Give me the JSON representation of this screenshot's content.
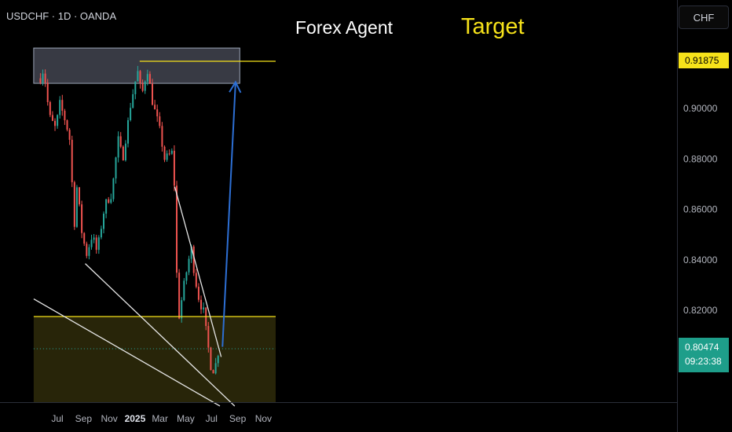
{
  "header": {
    "symbol_line": "USDCHF · 1D · OANDA",
    "currency_button": "CHF"
  },
  "annotations": {
    "forex_agent": "Forex Agent",
    "target": "Target"
  },
  "price_tags": {
    "target_price": "0.91875",
    "last_price": "0.80474",
    "countdown": "09:23:38"
  },
  "colors": {
    "background": "#000000",
    "up_candle": "#26a69a",
    "down_candle": "#ef5350",
    "target_line": "#f6e21a",
    "last_price_tag": "#1e9e8a",
    "projection_arrow": "#2d6fd4",
    "trendlines": "#e6e6e6"
  },
  "chart_data": {
    "type": "candlestick",
    "timeframe": "1D",
    "x_tick_labels": [
      "Jul",
      "Sep",
      "Nov",
      "2025",
      "Mar",
      "May",
      "Jul",
      "Sep",
      "Nov"
    ],
    "y_tick_labels": [
      "0.82000",
      "0.84000",
      "0.86000",
      "0.88000",
      "0.90000"
    ],
    "ylim": [
      0.782,
      0.9413
    ],
    "price_series": [
      {
        "date": "2024-05-20",
        "close": 0.912
      },
      {
        "date": "2024-05-28",
        "close": 0.916
      },
      {
        "date": "2024-06-10",
        "close": 0.897
      },
      {
        "date": "2024-06-25",
        "close": 0.892
      },
      {
        "date": "2024-07-05",
        "close": 0.902
      },
      {
        "date": "2024-07-20",
        "close": 0.894
      },
      {
        "date": "2024-08-01",
        "close": 0.885
      },
      {
        "date": "2024-08-06",
        "close": 0.848
      },
      {
        "date": "2024-08-15",
        "close": 0.87
      },
      {
        "date": "2024-08-25",
        "close": 0.852
      },
      {
        "date": "2024-09-06",
        "close": 0.842
      },
      {
        "date": "2024-09-20",
        "close": 0.85
      },
      {
        "date": "2024-10-01",
        "close": 0.843
      },
      {
        "date": "2024-10-20",
        "close": 0.862
      },
      {
        "date": "2024-11-05",
        "close": 0.866
      },
      {
        "date": "2024-11-20",
        "close": 0.888
      },
      {
        "date": "2024-12-01",
        "close": 0.88
      },
      {
        "date": "2024-12-20",
        "close": 0.902
      },
      {
        "date": "2025-01-05",
        "close": 0.915
      },
      {
        "date": "2025-01-15",
        "close": 0.905
      },
      {
        "date": "2025-01-28",
        "close": 0.916
      },
      {
        "date": "2025-02-10",
        "close": 0.902
      },
      {
        "date": "2025-02-25",
        "close": 0.893
      },
      {
        "date": "2025-03-10",
        "close": 0.88
      },
      {
        "date": "2025-03-31",
        "close": 0.883
      },
      {
        "date": "2025-04-11",
        "close": 0.815
      },
      {
        "date": "2025-04-25",
        "close": 0.83
      },
      {
        "date": "2025-05-12",
        "close": 0.845
      },
      {
        "date": "2025-05-20",
        "close": 0.834
      },
      {
        "date": "2025-06-01",
        "close": 0.823
      },
      {
        "date": "2025-06-10",
        "close": 0.82
      },
      {
        "date": "2025-06-20",
        "close": 0.807
      },
      {
        "date": "2025-06-30",
        "close": 0.795
      },
      {
        "date": "2025-07-10",
        "close": 0.799
      },
      {
        "date": "2025-07-17",
        "close": 0.805
      }
    ],
    "zones": [
      {
        "kind": "supply",
        "from": 0.91,
        "to": 0.924,
        "start": "2024-05-06",
        "end": "2025-09-06"
      },
      {
        "kind": "demand",
        "from": 0.782,
        "to": 0.8175,
        "start": "2024-05-06",
        "end": "2025-11-30"
      }
    ],
    "horizontal_lines": [
      {
        "name": "target",
        "y": 0.91875,
        "start": "2025-01-12",
        "end": "2025-11-30"
      },
      {
        "name": "demand-top",
        "y": 0.8175,
        "start": "2024-05-06",
        "end": "2025-11-30"
      },
      {
        "name": "last-price",
        "y": 0.80474,
        "style": "dotted",
        "start": "2024-05-06",
        "end": "2025-11-30"
      }
    ],
    "trendlines": [
      {
        "name": "wedge-upper",
        "from": {
          "date": "2025-04-05",
          "y": 0.869
        },
        "to": {
          "date": "2025-07-24",
          "y": 0.8015
        }
      },
      {
        "name": "wedge-lower",
        "from": {
          "date": "2024-09-05",
          "y": 0.8385
        },
        "to": {
          "date": "2025-08-25",
          "y": 0.782
        }
      },
      {
        "name": "long-support",
        "from": {
          "date": "2024-05-06",
          "y": 0.8245
        },
        "to": {
          "date": "2025-07-21",
          "y": 0.782
        }
      }
    ],
    "projection_arrow": {
      "from": {
        "date": "2025-07-27",
        "y": 0.8055
      },
      "to": {
        "date": "2025-08-27",
        "y": 0.9105
      }
    }
  }
}
